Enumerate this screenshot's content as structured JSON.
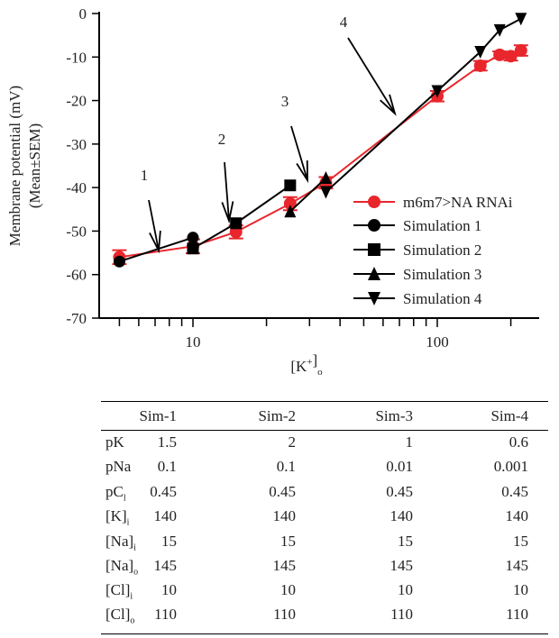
{
  "chart_data": {
    "type": "line",
    "xscale": "log",
    "xlim": [
      4.13,
      261
    ],
    "ylim": [
      -70,
      0
    ],
    "xlabel": "[K+]o",
    "ylabel": "Membrane potential (mV)",
    "ylabel2": "(Mean±SEM)",
    "xticks": [
      10,
      100
    ],
    "xtick_labels": [
      "10",
      "100"
    ],
    "yticks": [
      0,
      -10,
      -20,
      -30,
      -40,
      -50,
      -60,
      -70
    ],
    "ytick_labels": [
      "0",
      "-10",
      "-20",
      "-30",
      "-40",
      "-50",
      "-60",
      "-70"
    ],
    "legend_position": "right",
    "series": [
      {
        "name": "m6m7>NA RNAi",
        "color": "#e8262c",
        "marker": "circle",
        "x": [
          5,
          10,
          15,
          25,
          35,
          100,
          150,
          180,
          200,
          220
        ],
        "y": [
          -56,
          -53.5,
          -50.2,
          -43.7,
          -38.9,
          -19,
          -12,
          -9.5,
          -9.8,
          -8.5
        ],
        "sem": [
          1.6,
          1.6,
          1.5,
          1.5,
          1.3,
          1.2,
          1.1,
          0.8,
          1.0,
          1.2
        ]
      },
      {
        "name": "Simulation 1",
        "color": "#000000",
        "marker": "circle",
        "x": [
          5,
          10
        ],
        "y": [
          -57,
          -51.5
        ]
      },
      {
        "name": "Simulation 2",
        "color": "#000000",
        "marker": "square",
        "x": [
          10,
          15,
          25
        ],
        "y": [
          -54,
          -48.2,
          -39.5
        ]
      },
      {
        "name": "Simulation 3",
        "color": "#000000",
        "marker": "triangle-up",
        "x": [
          25,
          35
        ],
        "y": [
          -45.5,
          -37.8
        ]
      },
      {
        "name": "Simulation 4",
        "color": "#000000",
        "marker": "triangle-down",
        "x": [
          35,
          100,
          150,
          180,
          220
        ],
        "y": [
          -41,
          -17.8,
          -8.8,
          -3.8,
          -1.2
        ]
      }
    ],
    "annotations": [
      {
        "label": "1",
        "target_x": 7,
        "target_y": -55
      },
      {
        "label": "2",
        "target_x": 14,
        "target_y": -48.5
      },
      {
        "label": "3",
        "target_x": 31,
        "target_y": -38.5
      },
      {
        "label": "4",
        "target_x": 70,
        "target_y": -23
      }
    ]
  },
  "table": {
    "headers": [
      "",
      "Sim-1",
      "Sim-2",
      "Sim-3",
      "Sim-4"
    ],
    "rows": [
      {
        "label": "pK",
        "sub": "",
        "values": [
          "1.5",
          "2",
          "1",
          "0.6"
        ]
      },
      {
        "label": "pNa",
        "sub": "",
        "values": [
          "0.1",
          "0.1",
          "0.01",
          "0.001"
        ]
      },
      {
        "label": "pC",
        "sub": "l",
        "values": [
          "0.45",
          "0.45",
          "0.45",
          "0.45"
        ]
      },
      {
        "label": "[K]",
        "sub": "i",
        "values": [
          "140",
          "140",
          "140",
          "140"
        ]
      },
      {
        "label": "[Na]",
        "sub": "i",
        "values": [
          "15",
          "15",
          "15",
          "15"
        ]
      },
      {
        "label": "[Na]",
        "sub": "o",
        "values": [
          "145",
          "145",
          "145",
          "145"
        ]
      },
      {
        "label": "[Cl]",
        "sub": "i",
        "values": [
          "10",
          "10",
          "10",
          "10"
        ]
      },
      {
        "label": "[Cl]",
        "sub": "o",
        "values": [
          "110",
          "110",
          "110",
          "110"
        ]
      }
    ]
  }
}
